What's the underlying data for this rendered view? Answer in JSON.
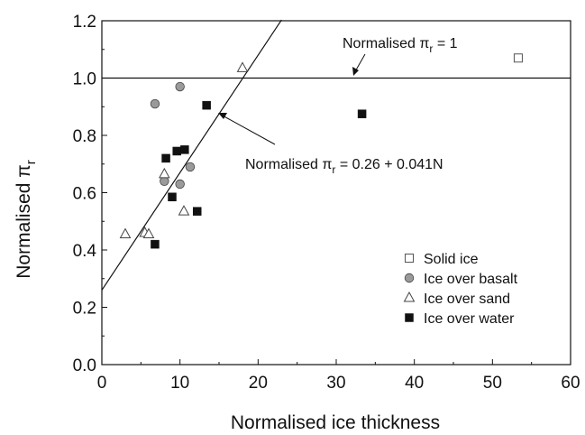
{
  "chart_data": {
    "type": "scatter",
    "xlabel": "Normalised ice thickness",
    "ylabel": "Normalised π",
    "ylabel_sub": "r",
    "xlim": [
      0,
      60
    ],
    "ylim": [
      0,
      1.2
    ],
    "xticks": [
      0,
      10,
      20,
      30,
      40,
      50,
      60
    ],
    "yticks": [
      0.0,
      0.2,
      0.4,
      0.6,
      0.8,
      1.0,
      1.2
    ],
    "xtick_labels": [
      "0",
      "10",
      "20",
      "30",
      "40",
      "50",
      "60"
    ],
    "ytick_labels": [
      "0.0",
      "0.2",
      "0.4",
      "0.6",
      "0.8",
      "1.0",
      "1.2"
    ],
    "grid": false,
    "legend_position": "bottom-right",
    "series": [
      {
        "name": "Solid ice",
        "marker": "open-square",
        "color": "#555555",
        "x": [
          53.3
        ],
        "y": [
          1.07
        ]
      },
      {
        "name": "Ice over basalt",
        "marker": "filled-circle",
        "color": "#999999",
        "x": [
          6.8,
          10.0,
          8.0,
          10.0,
          11.3
        ],
        "y": [
          0.91,
          0.97,
          0.64,
          0.63,
          0.69
        ]
      },
      {
        "name": "Ice over sand",
        "marker": "open-triangle",
        "color": "#444444",
        "x": [
          3.0,
          5.5,
          6.0,
          8.0,
          10.5,
          18.0
        ],
        "y": [
          0.455,
          0.46,
          0.455,
          0.665,
          0.535,
          1.035
        ]
      },
      {
        "name": "Ice over water",
        "marker": "filled-square",
        "color": "#111111",
        "x": [
          6.8,
          8.2,
          9.0,
          9.6,
          10.6,
          12.2,
          13.4,
          33.3
        ],
        "y": [
          0.42,
          0.72,
          0.585,
          0.745,
          0.75,
          0.535,
          0.905,
          0.875
        ]
      }
    ],
    "lines": [
      {
        "type": "horizontal",
        "y": 1.0
      },
      {
        "type": "linear-fit",
        "intercept": 0.26,
        "slope": 0.041,
        "x_range": [
          0,
          23
        ]
      }
    ],
    "annotations": [
      {
        "main": "Normalised π",
        "sub": "r",
        "rest": " = 1"
      },
      {
        "main": "Normalised π",
        "sub": "r",
        "rest": " = 0.26 + 0.041N"
      }
    ]
  }
}
